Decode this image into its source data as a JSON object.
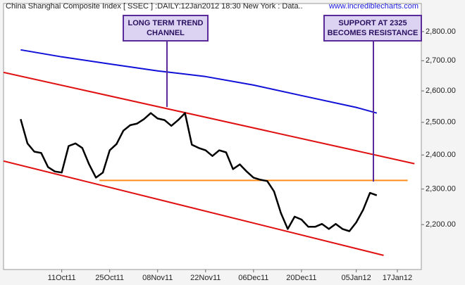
{
  "chart_data": {
    "type": "line",
    "title": "China Shanghai Composite Index [ SSEC ] :DAILY:12Jan2012 18:30 New York : Data..",
    "watermark": "www.incrediblecharts.com",
    "log_scale": true,
    "grid": false,
    "xlim": [
      "2011-09-24",
      "2012-01-24"
    ],
    "xticks": [
      {
        "value": "2011-10-11",
        "label": "11Oct11"
      },
      {
        "value": "2011-10-25",
        "label": "25Oct11"
      },
      {
        "value": "2011-11-08",
        "label": "08Nov11"
      },
      {
        "value": "2011-11-22",
        "label": "22Nov11"
      },
      {
        "value": "2011-12-06",
        "label": "06Dec11"
      },
      {
        "value": "2011-12-20",
        "label": "20Dec11"
      },
      {
        "value": "2012-01-05",
        "label": "05Jan12"
      },
      {
        "value": "2012-01-17",
        "label": "17Jan12"
      }
    ],
    "ylim": [
      2080,
      2900
    ],
    "yticks": [
      {
        "value": 2200,
        "label": "2,200.00"
      },
      {
        "value": 2300,
        "label": "2,300.00"
      },
      {
        "value": 2400,
        "label": "2,400.00"
      },
      {
        "value": 2500,
        "label": "2,500.00"
      },
      {
        "value": 2600,
        "label": "2,600.00"
      },
      {
        "value": 2700,
        "label": "2,700.00"
      },
      {
        "value": 2800,
        "label": "2,800.00"
      }
    ],
    "series": [
      {
        "color": "#000000",
        "width": 2.5,
        "x": [
          "2011-09-29",
          "2011-10-01",
          "2011-10-03",
          "2011-10-05",
          "2011-10-07",
          "2011-10-09",
          "2011-10-11",
          "2011-10-13",
          "2011-10-15",
          "2011-10-17",
          "2011-10-19",
          "2011-10-21",
          "2011-10-23",
          "2011-10-25",
          "2011-10-27",
          "2011-10-29",
          "2011-10-31",
          "2011-11-02",
          "2011-11-04",
          "2011-11-06",
          "2011-11-08",
          "2011-11-10",
          "2011-11-12",
          "2011-11-14",
          "2011-11-16",
          "2011-11-18",
          "2011-11-20",
          "2011-11-22",
          "2011-11-24",
          "2011-11-26",
          "2011-11-28",
          "2011-11-30",
          "2011-12-02",
          "2011-12-04",
          "2011-12-06",
          "2011-12-08",
          "2011-12-10",
          "2011-12-12",
          "2011-12-14",
          "2011-12-16",
          "2011-12-18",
          "2011-12-20",
          "2011-12-22",
          "2011-12-24",
          "2011-12-26",
          "2011-12-28",
          "2011-12-30",
          "2012-01-01",
          "2012-01-03",
          "2012-01-05",
          "2012-01-07",
          "2012-01-09",
          "2012-01-11"
        ],
        "values": [
          2510,
          2435,
          2410,
          2406,
          2364,
          2351,
          2348,
          2427,
          2435,
          2421,
          2372,
          2333,
          2348,
          2414,
          2433,
          2474,
          2491,
          2496,
          2510,
          2529,
          2512,
          2507,
          2489,
          2507,
          2529,
          2431,
          2421,
          2414,
          2397,
          2414,
          2408,
          2358,
          2372,
          2351,
          2333,
          2327,
          2323,
          2293,
          2232,
          2188,
          2222,
          2214,
          2194,
          2194,
          2202,
          2188,
          2202,
          2188,
          2182,
          2206,
          2241,
          2289,
          2282
        ]
      },
      {
        "color": "#1010d8",
        "width": 2,
        "x": [
          "2011-09-29",
          "2011-10-11",
          "2011-10-25",
          "2011-11-08",
          "2011-11-22",
          "2011-12-06",
          "2011-12-20",
          "2012-01-05",
          "2012-01-11"
        ],
        "values": [
          2737,
          2713,
          2689,
          2666,
          2647,
          2619,
          2585,
          2547,
          2529
        ]
      }
    ],
    "trendlines": [
      {
        "color": "#e01010",
        "x": [
          "2011-09-24",
          "2012-01-22"
        ],
        "values": [
          2661,
          2374
        ]
      },
      {
        "color": "#e01010",
        "x": [
          "2011-09-24",
          "2012-01-13"
        ],
        "values": [
          2382,
          2117
        ]
      },
      {
        "color": "#ff8c1a",
        "x": [
          "2011-10-22",
          "2012-01-20"
        ],
        "values": [
          2325,
          2325
        ]
      }
    ],
    "annotations": [
      {
        "lines": [
          "LONG TERM TREND",
          "CHANNEL"
        ]
      },
      {
        "lines": [
          "SUPPORT AT 2325",
          "BECOMES RESISTANCE"
        ]
      }
    ]
  }
}
